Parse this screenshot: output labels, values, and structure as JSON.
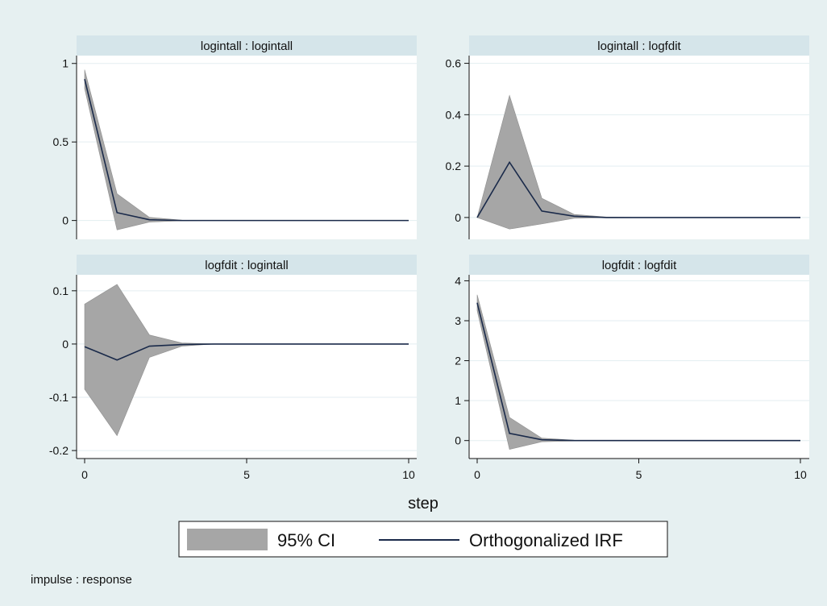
{
  "chart_data": {
    "type": "line",
    "x_title": "step",
    "x_ticks": [
      0,
      5,
      10
    ],
    "x_range": [
      0,
      10
    ],
    "grid": true,
    "legend_position": "bottom",
    "note": "impulse : response",
    "legend": [
      {
        "label": "95% CI",
        "kind": "area",
        "color": "#a6a6a6"
      },
      {
        "label": "Orthogonalized IRF",
        "kind": "line",
        "color": "#1a2a4a"
      }
    ],
    "colors": {
      "background": "#e6f0f1",
      "plot": "#ffffff",
      "strip": "#d5e5ea",
      "ci": "#a6a6a6",
      "irf": "#1a2a4a",
      "grid": "#e3eef0"
    },
    "panels": [
      {
        "title": "logintall : logintall",
        "ylim": [
          -0.12,
          1.05
        ],
        "yticks": [
          0,
          0.5,
          1
        ],
        "ytick_labels": [
          "0",
          "0.5",
          "1"
        ],
        "x": [
          0,
          1,
          2,
          3,
          4,
          5,
          6,
          7,
          8,
          9,
          10
        ],
        "irf": [
          0.9,
          0.05,
          0.005,
          0,
          0,
          0,
          0,
          0,
          0,
          0,
          0
        ],
        "ci_upper": [
          0.96,
          0.17,
          0.02,
          0.002,
          0,
          0,
          0,
          0,
          0,
          0,
          0
        ],
        "ci_lower": [
          0.84,
          -0.06,
          -0.01,
          -0.002,
          0,
          0,
          0,
          0,
          0,
          0,
          0
        ]
      },
      {
        "title": "logintall : logfdit",
        "ylim": [
          -0.085,
          0.63
        ],
        "yticks": [
          0,
          0.2,
          0.4,
          0.6
        ],
        "ytick_labels": [
          "0",
          "0.2",
          "0.4",
          "0.6"
        ],
        "x": [
          0,
          1,
          2,
          3,
          4,
          5,
          6,
          7,
          8,
          9,
          10
        ],
        "irf": [
          0,
          0.215,
          0.025,
          0.005,
          0,
          0,
          0,
          0,
          0,
          0,
          0
        ],
        "ci_upper": [
          0,
          0.475,
          0.075,
          0.012,
          0.002,
          0,
          0,
          0,
          0,
          0,
          0
        ],
        "ci_lower": [
          0,
          -0.045,
          -0.025,
          -0.003,
          0,
          0,
          0,
          0,
          0,
          0,
          0
        ]
      },
      {
        "title": "logfdit : logintall",
        "ylim": [
          -0.215,
          0.13
        ],
        "yticks": [
          -0.2,
          -0.1,
          0,
          0.1
        ],
        "ytick_labels": [
          "-0.2",
          "-0.1",
          "0",
          "0.1"
        ],
        "x": [
          0,
          1,
          2,
          3,
          4,
          5,
          6,
          7,
          8,
          9,
          10
        ],
        "irf": [
          -0.005,
          -0.03,
          -0.004,
          -0.001,
          0,
          0,
          0,
          0,
          0,
          0,
          0
        ],
        "ci_upper": [
          0.075,
          0.112,
          0.017,
          0.002,
          0,
          0,
          0,
          0,
          0,
          0,
          0
        ],
        "ci_lower": [
          -0.085,
          -0.172,
          -0.025,
          -0.004,
          0,
          0,
          0,
          0,
          0,
          0,
          0
        ]
      },
      {
        "title": "logfdit : logfdit",
        "ylim": [
          -0.45,
          4.15
        ],
        "yticks": [
          0,
          1,
          2,
          3,
          4
        ],
        "ytick_labels": [
          "0",
          "1",
          "2",
          "3",
          "4"
        ],
        "x": [
          0,
          1,
          2,
          3,
          4,
          5,
          6,
          7,
          8,
          9,
          10
        ],
        "irf": [
          3.45,
          0.18,
          0.02,
          0,
          0,
          0,
          0,
          0,
          0,
          0,
          0
        ],
        "ci_upper": [
          3.65,
          0.58,
          0.06,
          0.01,
          0,
          0,
          0,
          0,
          0,
          0,
          0
        ],
        "ci_lower": [
          3.25,
          -0.22,
          -0.03,
          -0.01,
          0,
          0,
          0,
          0,
          0,
          0,
          0
        ]
      }
    ]
  }
}
